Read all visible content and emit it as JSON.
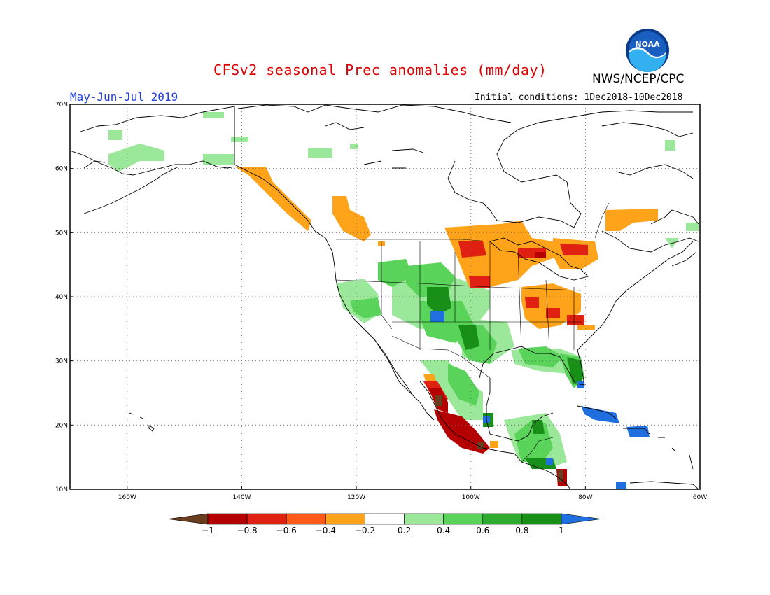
{
  "header": {
    "title": "CFSv2 seasonal Prec anomalies (mm/day)",
    "agency": "NWS/NCEP/CPC",
    "logo_text": "NOAA",
    "season": "May-Jun-Jul 2019",
    "initial_conditions": "Initial conditions: 1Dec2018-10Dec2018"
  },
  "map": {
    "lat_ticks": [
      "70N",
      "60N",
      "50N",
      "40N",
      "30N",
      "20N",
      "10N"
    ],
    "lon_ticks": [
      "160W",
      "140W",
      "120W",
      "100W",
      "80W",
      "60W"
    ],
    "extent": {
      "lon_min": -170,
      "lon_max": -60,
      "lat_min": 10,
      "lat_max": 70
    },
    "grid": true
  },
  "legend": {
    "labels": [
      "-1",
      "-0.8",
      "-0.6",
      "-0.4",
      "-0.2",
      "0.2",
      "0.4",
      "0.6",
      "0.8",
      "1"
    ],
    "colors": [
      "#6b3d1f",
      "#b40000",
      "#e02010",
      "#ff5a1a",
      "#ffa31a",
      "#ffffff",
      "#9be89a",
      "#5ad35a",
      "#2fab2f",
      "#189018",
      "#1f6fe0"
    ]
  },
  "colors": {
    "title": "#e00000",
    "season": "#1f3fe0",
    "dry_strong": "#b40000",
    "dry_moderate": "#ffa31a",
    "wet_moderate": "#5ad35a",
    "wet_strong": "#1f6fe0"
  }
}
